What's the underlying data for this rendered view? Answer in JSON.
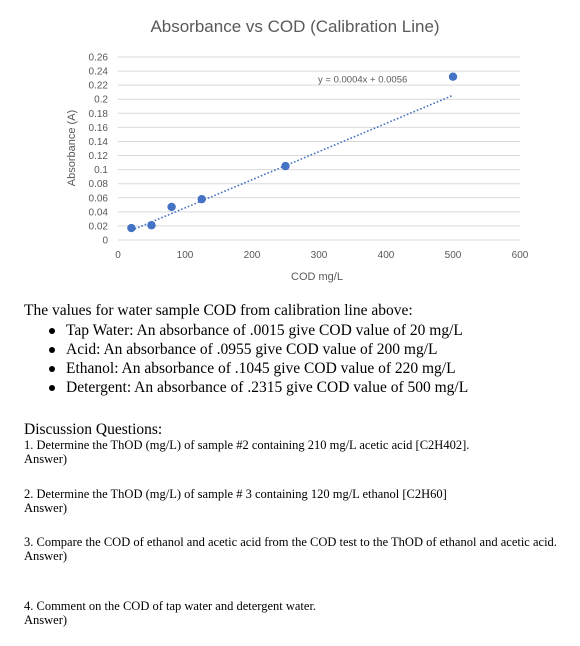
{
  "chart_data": {
    "type": "scatter",
    "title": "Absorbance vs COD (Calibration Line)",
    "xlabel": "COD mg/L",
    "ylabel": "Absorbance (A)",
    "xlim": [
      0,
      600
    ],
    "ylim": [
      0,
      0.26
    ],
    "xticks": [
      0,
      100,
      200,
      300,
      400,
      500,
      600
    ],
    "yticks": [
      0,
      0.02,
      0.04,
      0.06,
      0.08,
      0.1,
      0.12,
      0.14,
      0.16,
      0.18,
      0.2,
      0.22,
      0.24,
      0.26
    ],
    "ytick_labels": [
      "0",
      "0.02",
      "0.04",
      "0.06",
      "0.08",
      "0.1",
      "0.12",
      "0.14",
      "0.16",
      "0.18",
      "0.2",
      "0.22",
      "0.24",
      "0.26"
    ],
    "grid": true,
    "series": [
      {
        "x": [
          20,
          50,
          80,
          125,
          250,
          500
        ],
        "y": [
          0.017,
          0.021,
          0.047,
          0.058,
          0.105,
          0.232
        ],
        "color": "#4472C4"
      }
    ],
    "trendline": {
      "equation": "y = 0.0004x + 0.0056",
      "slope": 0.0004,
      "intercept": 0.0056,
      "x_range": [
        20,
        500
      ],
      "style": "dotted",
      "color": "#4472C4"
    }
  },
  "intro": "The values for water sample COD from calibration line above:",
  "results": [
    "Tap Water: An absorbance of .0015 give COD value of 20 mg/L",
    "Acid: An absorbance of .0955 give COD value of 200 mg/L",
    "Ethanol: An absorbance of .1045 give COD value of 220 mg/L",
    "Detergent: An absorbance of .2315 give COD value of 500 mg/L"
  ],
  "discussion_title": "Discussion Questions:",
  "questions": [
    {
      "text": "1. Determine the ThOD (mg/L) of sample #2 containing 210 mg/L acetic acid [C2H402].",
      "answer": "Answer)"
    },
    {
      "text": "2. Determine the ThOD (mg/L) of sample # 3 containing 120 mg/L ethanol [C2H60]",
      "answer": "Answer)"
    },
    {
      "text": "3. Compare the COD of ethanol and acetic acid from the COD test to the ThOD of ethanol and acetic acid.",
      "answer": "Answer)"
    },
    {
      "text": "4. Comment on the COD of tap water and detergent water.",
      "answer": "Answer)"
    }
  ]
}
